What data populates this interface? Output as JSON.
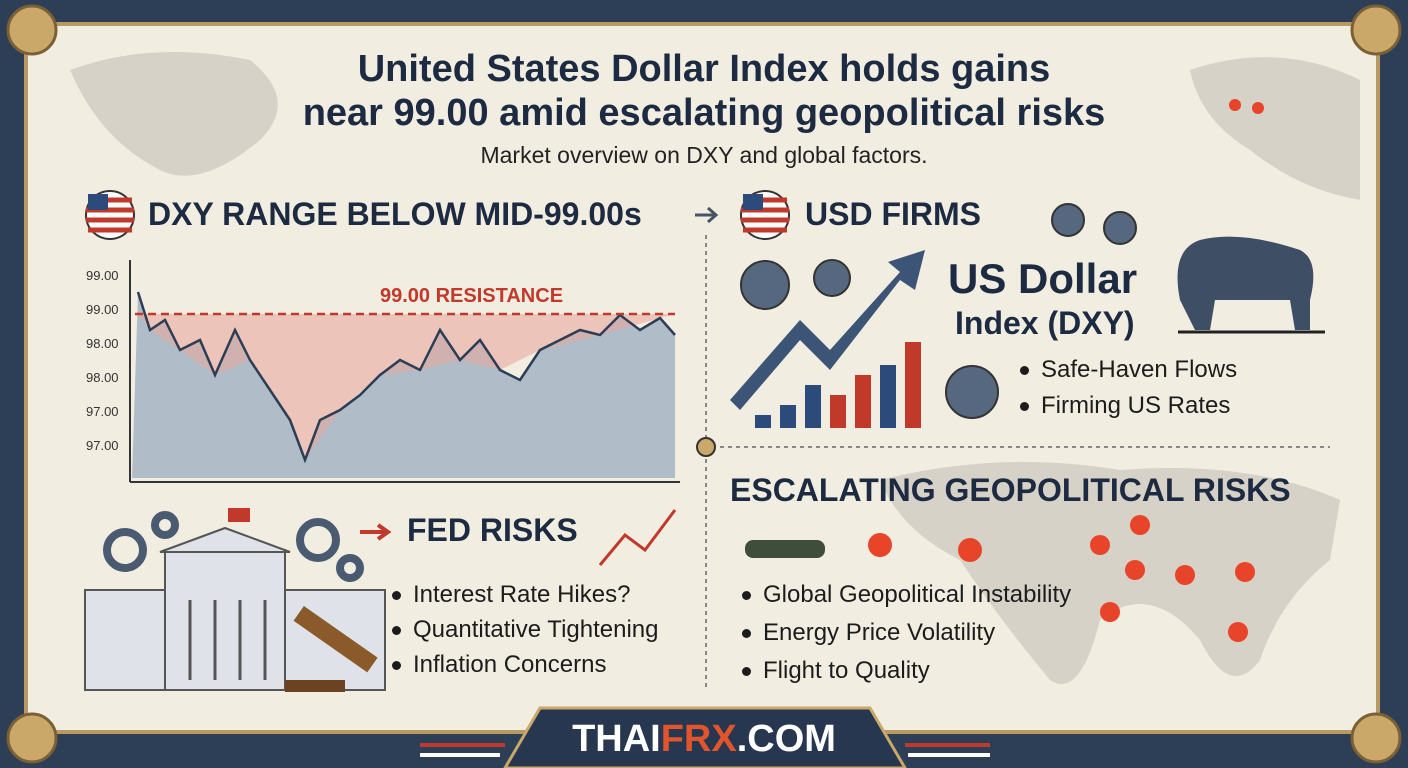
{
  "header": {
    "title_lines": [
      "United States Dollar Index holds gains",
      "near 99.00 amid escalating geopolitical risks"
    ],
    "subtitle": "Market overview on DXY and global factors."
  },
  "dxy_panel": {
    "heading": "DXY RANGE BELOW MID-99.00s",
    "y_tick_labels": [
      "99.00",
      "99.00",
      "98.00",
      "98.00",
      "97.00",
      "97.00"
    ],
    "resistance_label": "99.00 RESISTANCE"
  },
  "usd_panel": {
    "heading": "USD FIRMS",
    "title_lines": [
      "US Dollar",
      "Index (DXY)"
    ],
    "bullets": [
      "Safe-Haven Flows",
      "Firming US Rates"
    ]
  },
  "fed_panel": {
    "heading": "FED RISKS",
    "bullets": [
      "Interest Rate Hikes?",
      "Quantitative Tightening",
      "Inflation Concerns"
    ]
  },
  "geo_panel": {
    "heading": "ESCALATING GEOPOLITICAL RISKS",
    "bullets": [
      "Global Geopolitical Instability",
      "Energy Price Volatility",
      "Flight to Quality"
    ]
  },
  "footer": {
    "brand_parts": [
      "THAI",
      "FRX",
      ".COM"
    ]
  }
}
